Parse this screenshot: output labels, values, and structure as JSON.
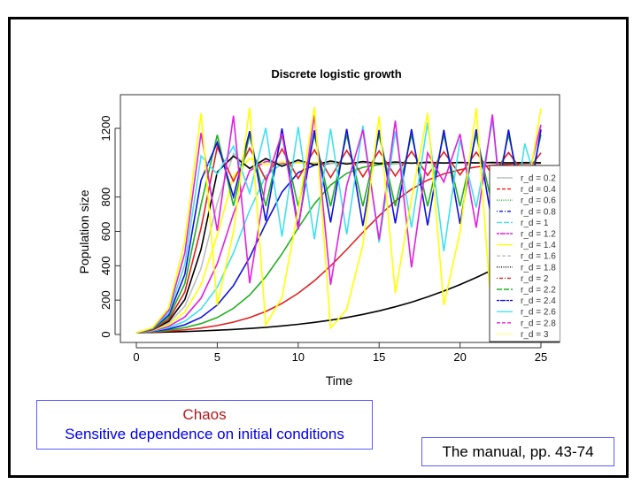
{
  "chart_data": {
    "type": "line",
    "title": "Discrete logistic growth",
    "xlabel": "Time",
    "ylabel": "Population size",
    "xlim": [
      0,
      25
    ],
    "ylim": [
      0,
      1300
    ],
    "x_ticks": [
      "0",
      "5",
      "10",
      "15",
      "20",
      "25"
    ],
    "y_ticks": [
      "0",
      "200",
      "400",
      "600",
      "800",
      "1200"
    ],
    "grid": false,
    "legend_position": "right",
    "model": {
      "carrying_capacity": 1000,
      "initial_population": 10
    },
    "series": [
      {
        "name": "r_d = 0.2",
        "r_d": 0.2,
        "color": "#000000",
        "legend_color": "#bebebe",
        "dash": ""
      },
      {
        "name": "r_d = 0.4",
        "r_d": 0.4,
        "color": "#df2020",
        "legend_color": "#df2020",
        "dash": "4,2"
      },
      {
        "name": "r_d = 0.6",
        "r_d": 0.6,
        "color": "#22b022",
        "legend_color": "#22b022",
        "dash": "1,1.5"
      },
      {
        "name": "r_d = 0.8",
        "r_d": 0.8,
        "color": "#1010e0",
        "legend_color": "#1010e0",
        "dash": "1,2,4,2"
      },
      {
        "name": "r_d = 1",
        "r_d": 1.0,
        "color": "#40e0f0",
        "legend_color": "#40e0f0",
        "dash": "6,2"
      },
      {
        "name": "r_d = 1.2",
        "r_d": 1.2,
        "color": "#e020e0",
        "legend_color": "#e020e0",
        "dash": "3,1,6,1"
      },
      {
        "name": "r_d = 1.4",
        "r_d": 1.4,
        "color": "#ffff00",
        "legend_color": "#ffff00",
        "dash": ""
      },
      {
        "name": "r_d = 1.6",
        "r_d": 1.6,
        "color": "#bebebe",
        "legend_color": "#bebebe",
        "dash": "4,2"
      },
      {
        "name": "r_d = 1.8",
        "r_d": 1.8,
        "color": "#000000",
        "legend_color": "#000000",
        "dash": "1,1.5"
      },
      {
        "name": "r_d = 2",
        "r_d": 2.0,
        "color": "#df2020",
        "legend_color": "#df2020",
        "dash": "1,2,4,2"
      },
      {
        "name": "r_d = 2.2",
        "r_d": 2.2,
        "color": "#22b022",
        "legend_color": "#22b022",
        "dash": "6,2"
      },
      {
        "name": "r_d = 2.4",
        "r_d": 2.4,
        "color": "#1010e0",
        "legend_color": "#1010e0",
        "dash": "3,1,6,1"
      },
      {
        "name": "r_d = 2.6",
        "r_d": 2.6,
        "color": "#40e0f0",
        "legend_color": "#40e0f0",
        "dash": ""
      },
      {
        "name": "r_d = 2.8",
        "r_d": 2.8,
        "color": "#e020e0",
        "legend_color": "#e020e0",
        "dash": "4,2"
      },
      {
        "name": "r_d = 3",
        "r_d": 3.0,
        "color": "#ffff00",
        "legend_color": "#ffff00",
        "dash": "1,1.5"
      }
    ]
  },
  "notes": {
    "chaos_title": "Chaos",
    "chaos_subtitle": "Sensitive dependence on initial conditions",
    "reference": "The manual, pp. 43-74"
  },
  "colors": {
    "chaos_title": "#b01c1c",
    "chaos_subtitle": "#0000ee",
    "box_border": "#5b5bff"
  }
}
